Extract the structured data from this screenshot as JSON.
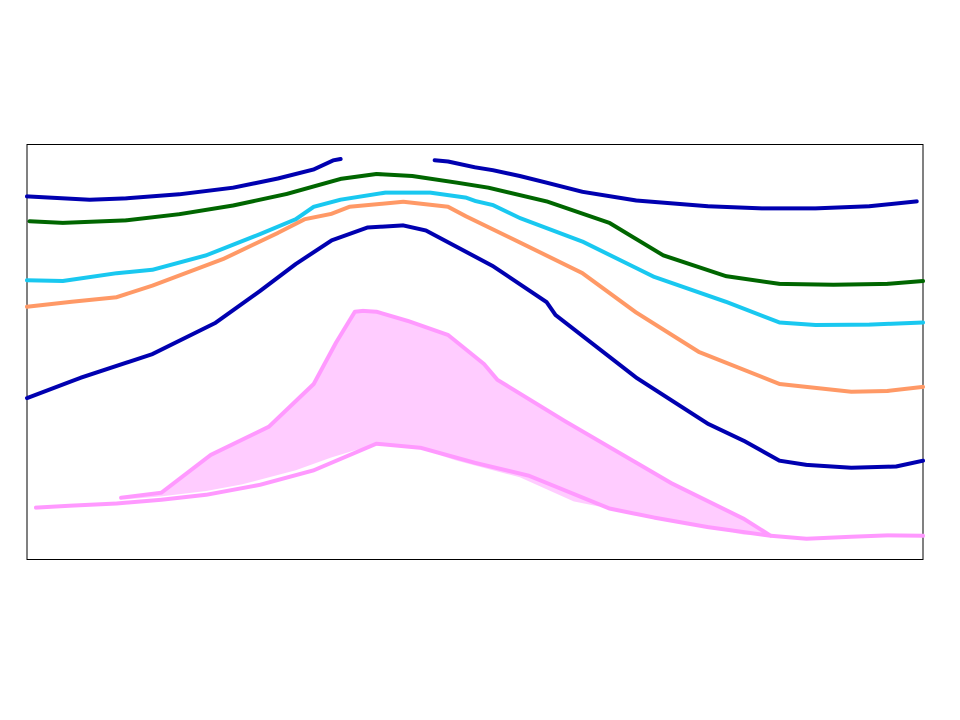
{
  "chart_data": {
    "type": "line",
    "title": "",
    "xlabel": "",
    "ylabel": "",
    "xlim": [
      0,
      100
    ],
    "ylim": [
      0,
      100
    ],
    "grid": false,
    "legend": "none",
    "series": [
      {
        "color": "#0000b0",
        "segments": [
          [
            [
              0,
              87.5
            ],
            [
              7,
              86.7
            ],
            [
              11,
              87.0
            ],
            [
              17,
              88.0
            ],
            [
              23,
              89.6
            ],
            [
              28,
              91.8
            ],
            [
              32,
              94.0
            ],
            [
              34.2,
              96.2
            ],
            [
              35,
              96.5
            ]
          ],
          [
            [
              45.5,
              96.2
            ],
            [
              47,
              95.9
            ],
            [
              50,
              94.5
            ],
            [
              52,
              93.8
            ],
            [
              55,
              92.4
            ],
            [
              58,
              90.8
            ],
            [
              62,
              88.6
            ],
            [
              68,
              86.5
            ],
            [
              76,
              85.1
            ],
            [
              82,
              84.6
            ],
            [
              88,
              84.6
            ],
            [
              94,
              85.1
            ],
            [
              99.3,
              86.3
            ]
          ]
        ]
      },
      {
        "color": "#006600",
        "segments": [
          [
            [
              0.3,
              81.5
            ],
            [
              4,
              81.1
            ],
            [
              11,
              81.7
            ],
            [
              17,
              83.2
            ],
            [
              23,
              85.3
            ],
            [
              29,
              88.1
            ],
            [
              35,
              91.7
            ],
            [
              39,
              92.9
            ],
            [
              43,
              92.4
            ],
            [
              48,
              90.8
            ],
            [
              51.5,
              89.6
            ],
            [
              58,
              86.3
            ],
            [
              65,
              81.1
            ],
            [
              71,
              73.3
            ],
            [
              78,
              68.3
            ],
            [
              84,
              66.4
            ],
            [
              90,
              66.2
            ],
            [
              96,
              66.4
            ],
            [
              100,
              67.1
            ]
          ]
        ]
      },
      {
        "color": "#19c8f0",
        "segments": [
          [
            [
              0,
              67.3
            ],
            [
              4,
              67.1
            ],
            [
              10,
              69.0
            ],
            [
              14,
              69.8
            ],
            [
              20,
              73.3
            ],
            [
              26,
              78.4
            ],
            [
              30,
              82.0
            ],
            [
              32,
              85.0
            ],
            [
              35,
              86.7
            ],
            [
              40,
              88.4
            ],
            [
              45,
              88.4
            ],
            [
              49,
              87.2
            ],
            [
              50,
              86.4
            ],
            [
              52,
              85.4
            ],
            [
              55,
              82.3
            ],
            [
              62,
              76.6
            ],
            [
              70,
              68.1
            ],
            [
              78,
              62.1
            ],
            [
              84,
              57.1
            ],
            [
              88,
              56.5
            ],
            [
              94,
              56.6
            ],
            [
              100,
              57.1
            ]
          ]
        ]
      },
      {
        "color": "#ff9966",
        "segments": [
          [
            [
              0,
              60.9
            ],
            [
              5,
              62.1
            ],
            [
              10,
              63.2
            ],
            [
              14,
              66.0
            ],
            [
              22,
              72.5
            ],
            [
              28,
              78.7
            ],
            [
              31,
              82.0
            ],
            [
              34,
              83.3
            ],
            [
              36,
              85.0
            ],
            [
              42,
              86.2
            ],
            [
              47,
              85.0
            ],
            [
              49,
              82.7
            ],
            [
              55,
              76.4
            ],
            [
              62,
              69.0
            ],
            [
              68,
              59.5
            ],
            [
              75,
              50.0
            ],
            [
              84,
              42.3
            ],
            [
              92,
              40.4
            ],
            [
              96,
              40.6
            ],
            [
              100,
              41.6
            ]
          ]
        ]
      },
      {
        "color": "#0000b0",
        "segments": [
          [
            [
              0,
              38.9
            ],
            [
              6,
              43.8
            ],
            [
              14,
              49.5
            ],
            [
              21,
              57.0
            ],
            [
              26,
              64.7
            ],
            [
              30,
              71.2
            ],
            [
              34,
              76.9
            ],
            [
              38,
              80.0
            ],
            [
              42,
              80.5
            ],
            [
              44.5,
              79.3
            ],
            [
              52,
              70.7
            ],
            [
              58,
              62.0
            ],
            [
              59,
              58.9
            ],
            [
              68,
              43.8
            ],
            [
              76,
              32.7
            ],
            [
              80,
              28.6
            ],
            [
              84,
              23.8
            ],
            [
              87,
              22.8
            ],
            [
              92,
              22.1
            ],
            [
              97,
              22.4
            ],
            [
              100,
              23.8
            ]
          ]
        ]
      }
    ],
    "band": {
      "color": "#ffccff",
      "edge_color": "#ff99ff",
      "upper": [
        [
          10.5,
          14.9
        ],
        [
          15,
          16.1
        ],
        [
          20.5,
          25.2
        ],
        [
          27,
          32.0
        ],
        [
          32,
          42.3
        ],
        [
          34.5,
          52.3
        ],
        [
          36.6,
          59.7
        ],
        [
          37.5,
          59.9
        ],
        [
          39,
          59.7
        ],
        [
          42.5,
          57.5
        ],
        [
          47,
          54.1
        ],
        [
          51,
          47.1
        ],
        [
          52.5,
          43.3
        ],
        [
          60,
          33.4
        ],
        [
          72,
          18.3
        ],
        [
          80,
          9.8
        ],
        [
          83,
          5.7
        ]
      ],
      "lower": [
        [
          10.5,
          14.4
        ],
        [
          15,
          15.2
        ],
        [
          20,
          16.5
        ],
        [
          24,
          18.1
        ],
        [
          30,
          21.5
        ],
        [
          34,
          24.6
        ],
        [
          39,
          27.9
        ],
        [
          43.5,
          26.9
        ],
        [
          48,
          23.8
        ],
        [
          55,
          19.8
        ],
        [
          61,
          14.0
        ],
        [
          70,
          10.1
        ],
        [
          80,
          6.0
        ],
        [
          83,
          5.7
        ]
      ],
      "extension": [
        [
          1,
          12.5
        ],
        [
          5,
          13.0
        ],
        [
          10,
          13.5
        ],
        [
          15,
          14.4
        ],
        [
          20,
          15.6
        ],
        [
          26,
          18.0
        ],
        [
          32,
          21.5
        ],
        [
          39,
          27.9
        ],
        [
          44,
          26.9
        ],
        [
          50,
          23.3
        ],
        [
          56,
          20.2
        ],
        [
          65,
          12.3
        ],
        [
          70,
          10.1
        ],
        [
          76,
          7.8
        ],
        [
          83,
          5.7
        ],
        [
          87,
          5.0
        ],
        [
          92,
          5.5
        ],
        [
          96,
          5.8
        ],
        [
          100,
          5.7
        ]
      ]
    }
  }
}
